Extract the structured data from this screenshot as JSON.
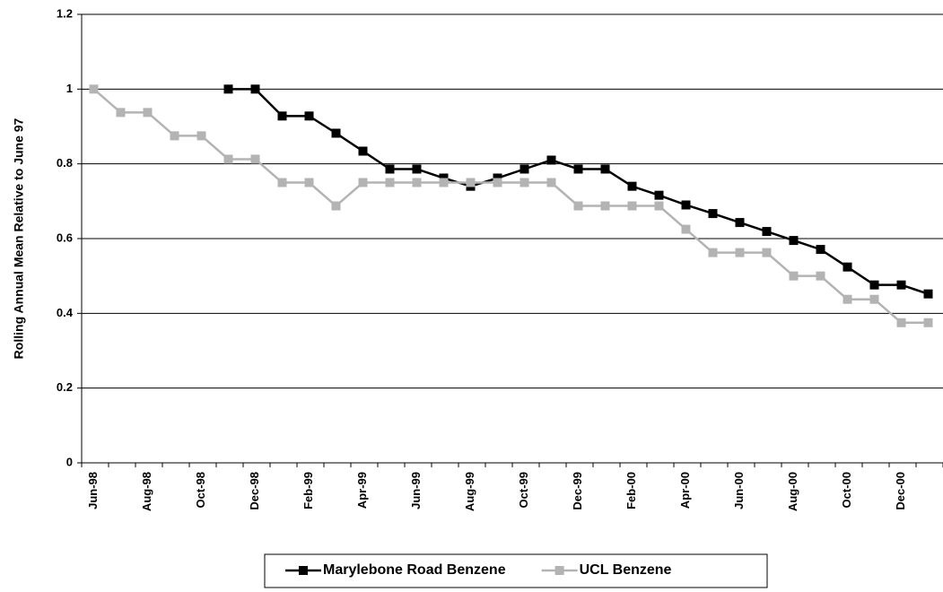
{
  "chart_data": {
    "type": "line",
    "y_label": "Rolling Annual Mean Relative to June 97",
    "categories": [
      "Jun-98",
      null,
      "Aug-98",
      null,
      "Oct-98",
      null,
      "Dec-98",
      null,
      "Feb-99",
      null,
      "Apr-99",
      null,
      "Jun-99",
      null,
      "Aug-99",
      null,
      "Oct-99",
      null,
      "Dec-99",
      null,
      "Feb-00",
      null,
      "Apr-00",
      null,
      "Jun-00",
      null,
      "Aug-00",
      null,
      "Oct-00",
      null,
      "Dec-00",
      null
    ],
    "series": [
      {
        "name": "Marylebone Road Benzene",
        "color": "#000000",
        "values": [
          null,
          null,
          null,
          null,
          null,
          1.0,
          1.0,
          0.928,
          0.928,
          0.882,
          0.834,
          0.786,
          0.786,
          0.762,
          0.74,
          0.762,
          0.786,
          0.81,
          0.786,
          0.786,
          0.74,
          0.716,
          0.69,
          0.667,
          0.643,
          0.619,
          0.595,
          0.571,
          0.524,
          0.476,
          0.476,
          0.452
        ]
      },
      {
        "name": "UCL Benzene",
        "color": "#b3b3b3",
        "values": [
          1.0,
          0.9375,
          0.9375,
          0.875,
          0.875,
          0.8125,
          0.8125,
          0.75,
          0.75,
          0.6875,
          0.75,
          0.75,
          0.75,
          0.75,
          0.75,
          0.75,
          0.75,
          0.75,
          0.6875,
          0.6875,
          0.6875,
          0.6875,
          0.625,
          0.5625,
          0.5625,
          0.5625,
          0.5,
          0.5,
          0.4375,
          0.4375,
          0.375,
          0.375
        ]
      }
    ],
    "ylim": [
      0,
      1.2
    ],
    "yticks": [
      0,
      0.2,
      0.4,
      0.6,
      0.8,
      1,
      1.2
    ],
    "grid": true,
    "legend": "bottom"
  }
}
